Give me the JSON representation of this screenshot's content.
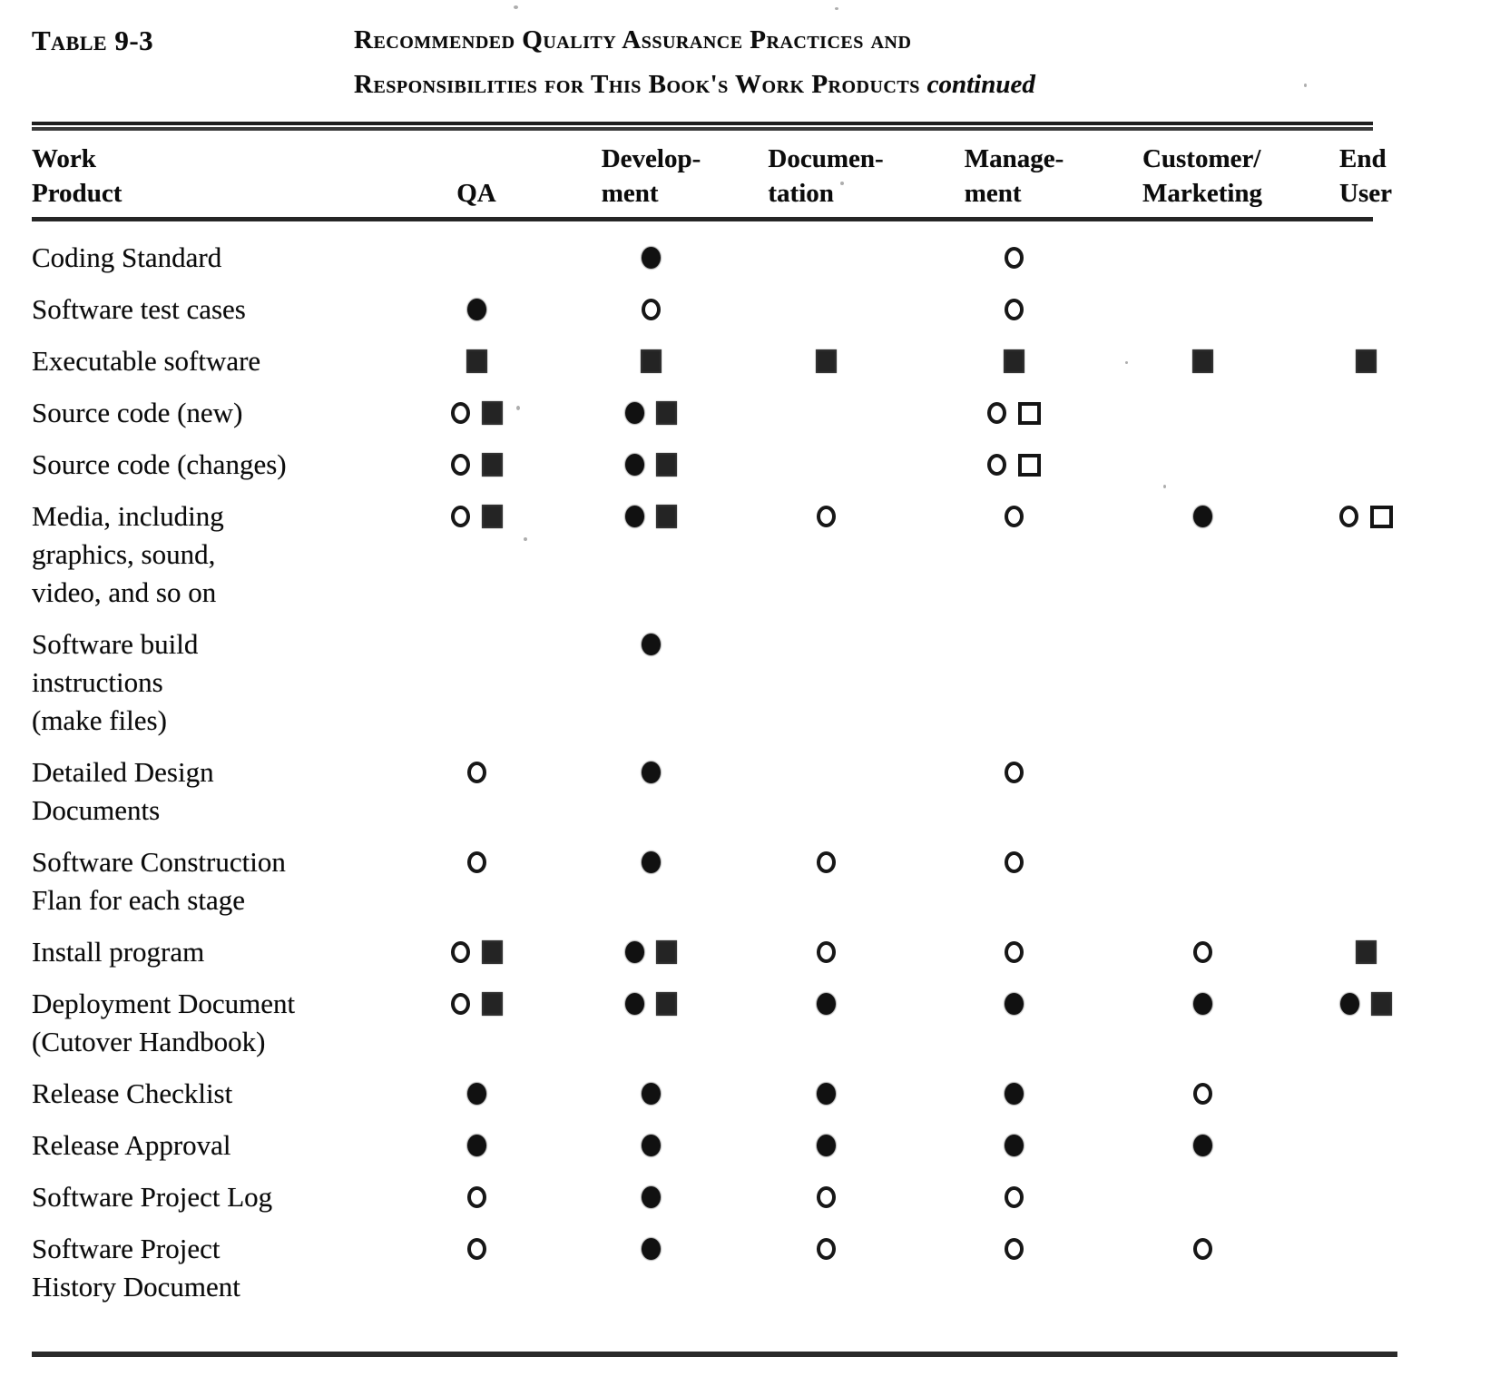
{
  "table": {
    "tag": "Table 9-3",
    "title_line1": "Recommended Quality Assurance Practices and",
    "title_line2": "Responsibilities for This Book's Work Products",
    "title_continued": "continued"
  },
  "columns": [
    {
      "id": "work_product",
      "lines": [
        "Work",
        "Product"
      ]
    },
    {
      "id": "qa",
      "lines": [
        "",
        "QA"
      ]
    },
    {
      "id": "development",
      "lines": [
        "Develop-",
        "ment"
      ]
    },
    {
      "id": "documentation",
      "lines": [
        "Documen-",
        "tation"
      ]
    },
    {
      "id": "management",
      "lines": [
        "Manage-",
        "ment"
      ]
    },
    {
      "id": "customer_marketing",
      "lines": [
        "Customer/",
        "Marketing"
      ]
    },
    {
      "id": "end_user",
      "lines": [
        "End",
        "User"
      ]
    }
  ],
  "symbols": {
    "fc": "filled-circle",
    "oc": "open-circle",
    "fs": "filled-square",
    "os": "open-square"
  },
  "rows": [
    {
      "label_lines": [
        "Coding Standard"
      ],
      "cells": {
        "qa": [],
        "development": [
          "fc"
        ],
        "documentation": [],
        "management": [
          "oc"
        ],
        "customer_marketing": [],
        "end_user": []
      }
    },
    {
      "label_lines": [
        "Software test cases"
      ],
      "cells": {
        "qa": [
          "fc"
        ],
        "development": [
          "oc"
        ],
        "documentation": [],
        "management": [
          "oc"
        ],
        "customer_marketing": [],
        "end_user": []
      }
    },
    {
      "label_lines": [
        "Executable software"
      ],
      "cells": {
        "qa": [
          "fs"
        ],
        "development": [
          "fs"
        ],
        "documentation": [
          "fs"
        ],
        "management": [
          "fs"
        ],
        "customer_marketing": [
          "fs"
        ],
        "end_user": [
          "fs"
        ]
      }
    },
    {
      "label_lines": [
        "Source code (new)"
      ],
      "cells": {
        "qa": [
          "oc",
          "fs"
        ],
        "development": [
          "fc",
          "fs"
        ],
        "documentation": [],
        "management": [
          "oc",
          "os"
        ],
        "customer_marketing": [],
        "end_user": []
      }
    },
    {
      "label_lines": [
        "Source code (changes)"
      ],
      "cells": {
        "qa": [
          "oc",
          "fs"
        ],
        "development": [
          "fc",
          "fs"
        ],
        "documentation": [],
        "management": [
          "oc",
          "os"
        ],
        "customer_marketing": [],
        "end_user": []
      }
    },
    {
      "label_lines": [
        "Media, including",
        "graphics, sound,",
        "video, and so on"
      ],
      "cells": {
        "qa": [
          "oc",
          "fs"
        ],
        "development": [
          "fc",
          "fs"
        ],
        "documentation": [
          "oc"
        ],
        "management": [
          "oc"
        ],
        "customer_marketing": [
          "fc"
        ],
        "end_user": [
          "oc",
          "os"
        ]
      }
    },
    {
      "label_lines": [
        "Software  build",
        "instructions",
        "(make files)"
      ],
      "cells": {
        "qa": [],
        "development": [
          "fc"
        ],
        "documentation": [],
        "management": [],
        "customer_marketing": [],
        "end_user": []
      }
    },
    {
      "label_lines": [
        "Detailed Design",
        "Documents"
      ],
      "cells": {
        "qa": [
          "oc"
        ],
        "development": [
          "fc"
        ],
        "documentation": [],
        "management": [
          "oc"
        ],
        "customer_marketing": [],
        "end_user": []
      }
    },
    {
      "label_lines": [
        "Software  Construction",
        "Flan for each stage"
      ],
      "cells": {
        "qa": [
          "oc"
        ],
        "development": [
          "fc"
        ],
        "documentation": [
          "oc"
        ],
        "management": [
          "oc"
        ],
        "customer_marketing": [],
        "end_user": []
      }
    },
    {
      "label_lines": [
        "Install program"
      ],
      "cells": {
        "qa": [
          "oc",
          "fs"
        ],
        "development": [
          "fc",
          "fs"
        ],
        "documentation": [
          "oc"
        ],
        "management": [
          "oc"
        ],
        "customer_marketing": [
          "oc"
        ],
        "end_user": [
          "fs"
        ]
      }
    },
    {
      "label_lines": [
        "Deployment Document",
        "(Cutover  Handbook)"
      ],
      "cells": {
        "qa": [
          "oc",
          "fs"
        ],
        "development": [
          "fc",
          "fs"
        ],
        "documentation": [
          "fc"
        ],
        "management": [
          "fc"
        ],
        "customer_marketing": [
          "fc"
        ],
        "end_user": [
          "fc",
          "fs"
        ]
      }
    },
    {
      "label_lines": [
        "Release  Checklist"
      ],
      "cells": {
        "qa": [
          "fc"
        ],
        "development": [
          "fc"
        ],
        "documentation": [
          "fc"
        ],
        "management": [
          "fc"
        ],
        "customer_marketing": [
          "oc"
        ],
        "end_user": []
      }
    },
    {
      "label_lines": [
        "Release  Approval"
      ],
      "cells": {
        "qa": [
          "fc"
        ],
        "development": [
          "fc"
        ],
        "documentation": [
          "fc"
        ],
        "management": [
          "fc"
        ],
        "customer_marketing": [
          "fc"
        ],
        "end_user": []
      }
    },
    {
      "label_lines": [
        "Software Project Log"
      ],
      "cells": {
        "qa": [
          "oc"
        ],
        "development": [
          "fc"
        ],
        "documentation": [
          "oc"
        ],
        "management": [
          "oc"
        ],
        "customer_marketing": [],
        "end_user": []
      }
    },
    {
      "label_lines": [
        "Software Project",
        "History Document"
      ],
      "cells": {
        "qa": [
          "oc"
        ],
        "development": [
          "fc"
        ],
        "documentation": [
          "oc"
        ],
        "management": [
          "oc"
        ],
        "customer_marketing": [
          "oc"
        ],
        "end_user": []
      }
    }
  ]
}
